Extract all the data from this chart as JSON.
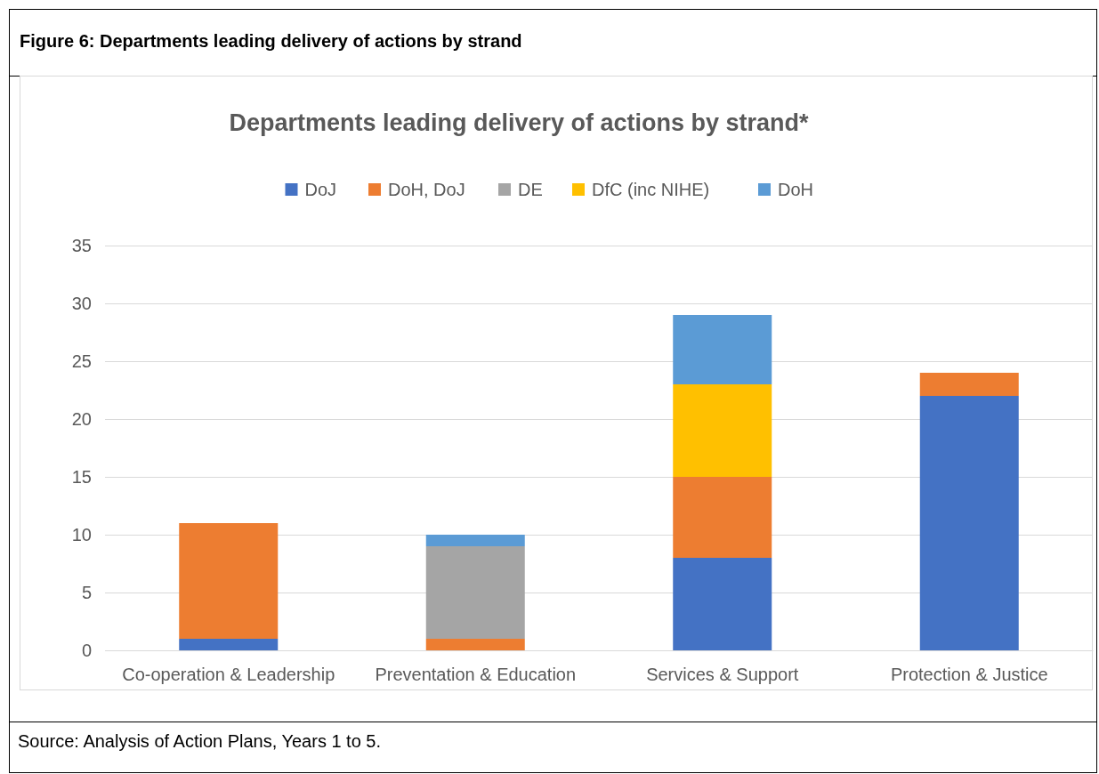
{
  "chart_data": {
    "type": "bar",
    "title": "Departments leading delivery of actions by strand*",
    "stacked": true,
    "categories": [
      "Co-operation & Leadership",
      "Preventation & Education",
      "Services & Support",
      "Protection & Justice"
    ],
    "series": [
      {
        "name": "DoJ",
        "color": "#4472c4",
        "values": [
          1,
          0,
          8,
          22
        ]
      },
      {
        "name": "DoH, DoJ",
        "color": "#ed7d31",
        "values": [
          10,
          1,
          7,
          2
        ]
      },
      {
        "name": "DE",
        "color": "#a5a5a5",
        "values": [
          0,
          8,
          0,
          0
        ]
      },
      {
        "name": "DfC (inc NIHE)",
        "color": "#ffc000",
        "values": [
          0,
          0,
          8,
          0
        ]
      },
      {
        "name": "DoH",
        "color": "#5b9bd5",
        "values": [
          0,
          1,
          6,
          0
        ]
      }
    ],
    "ylim": [
      0,
      35
    ],
    "yticks": [
      0,
      5,
      10,
      15,
      20,
      25,
      30,
      35
    ],
    "grid": "y",
    "legend": "top",
    "annotations": [
      "Figure 6: Departments leading delivery of actions by strand",
      "Source: Analysis of Action Plans, Years 1 to 5."
    ]
  }
}
